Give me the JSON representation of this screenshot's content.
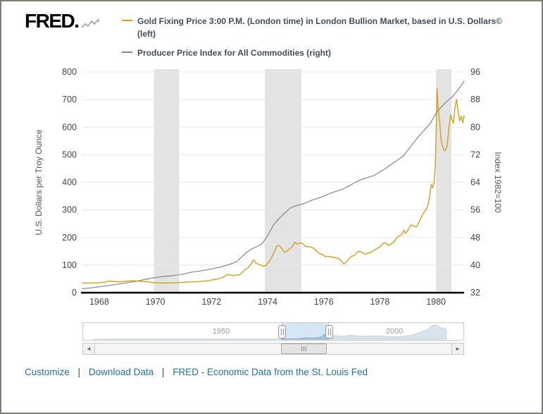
{
  "header": {
    "logo_text": "FRED."
  },
  "legend": [
    {
      "swatch_color": "#d4a017",
      "label": "Gold Fixing Price 3:00 P.M. (London time) in London Bullion Market, based in U.S. Dollars© (left)"
    },
    {
      "swatch_color": "#878787",
      "label": "Producer Price Index for All Commodities (right)"
    }
  ],
  "chart_data": {
    "type": "line",
    "title": "",
    "x_range": [
      1967.4,
      1981.0
    ],
    "x_ticks": [
      1968,
      1970,
      1972,
      1974,
      1976,
      1978,
      1980
    ],
    "left_axis": {
      "label": "U.S. Dollars per Troy Ounce",
      "min": 0,
      "max": 800,
      "ticks": [
        0,
        100,
        200,
        300,
        400,
        500,
        600,
        700,
        800
      ]
    },
    "right_axis": {
      "label": "Index 1982=100",
      "min": 32,
      "max": 96,
      "ticks": [
        32,
        40,
        48,
        56,
        64,
        72,
        80,
        88,
        96
      ]
    },
    "grid": true,
    "grid_color": "#e8e8e8",
    "recession_band_color": "#e3e3e3",
    "recession_bands": [
      [
        1969.95,
        1970.85
      ],
      [
        1973.9,
        1975.2
      ],
      [
        1980.0,
        1980.55
      ]
    ],
    "tick_text_color": "#444444",
    "axis_title_color": "#555555",
    "series": [
      {
        "name": "Producer Price Index for All Commodities",
        "axis": "right",
        "color": "#878787",
        "points": [
          [
            1967.4,
            33.2
          ],
          [
            1967.7,
            33.4
          ],
          [
            1968.0,
            33.7
          ],
          [
            1968.3,
            34.0
          ],
          [
            1968.6,
            34.4
          ],
          [
            1969.0,
            34.9
          ],
          [
            1969.3,
            35.3
          ],
          [
            1969.6,
            35.8
          ],
          [
            1970.0,
            36.4
          ],
          [
            1970.3,
            36.7
          ],
          [
            1970.6,
            36.9
          ],
          [
            1971.0,
            37.4
          ],
          [
            1971.3,
            38.0
          ],
          [
            1971.6,
            38.3
          ],
          [
            1972.0,
            38.9
          ],
          [
            1972.3,
            39.4
          ],
          [
            1972.6,
            40.1
          ],
          [
            1972.9,
            41.0
          ],
          [
            1973.0,
            41.8
          ],
          [
            1973.2,
            43.3
          ],
          [
            1973.4,
            44.6
          ],
          [
            1973.6,
            45.3
          ],
          [
            1973.8,
            46.2
          ],
          [
            1974.0,
            48.5
          ],
          [
            1974.2,
            51.5
          ],
          [
            1974.4,
            53.5
          ],
          [
            1974.6,
            55.0
          ],
          [
            1974.8,
            56.5
          ],
          [
            1975.0,
            57.2
          ],
          [
            1975.2,
            57.6
          ],
          [
            1975.4,
            58.2
          ],
          [
            1975.6,
            58.9
          ],
          [
            1975.8,
            59.4
          ],
          [
            1976.0,
            60.0
          ],
          [
            1976.2,
            60.7
          ],
          [
            1976.4,
            61.3
          ],
          [
            1976.6,
            61.8
          ],
          [
            1976.8,
            62.5
          ],
          [
            1977.0,
            63.4
          ],
          [
            1977.2,
            64.3
          ],
          [
            1977.4,
            65.0
          ],
          [
            1977.6,
            65.5
          ],
          [
            1977.8,
            66.0
          ],
          [
            1978.0,
            67.0
          ],
          [
            1978.2,
            68.0
          ],
          [
            1978.4,
            69.2
          ],
          [
            1978.6,
            70.3
          ],
          [
            1978.8,
            71.4
          ],
          [
            1979.0,
            73.3
          ],
          [
            1979.2,
            75.5
          ],
          [
            1979.4,
            77.5
          ],
          [
            1979.6,
            79.3
          ],
          [
            1979.8,
            81.2
          ],
          [
            1980.0,
            84.0
          ],
          [
            1980.2,
            86.0
          ],
          [
            1980.4,
            87.6
          ],
          [
            1980.6,
            89.0
          ],
          [
            1980.8,
            91.0
          ],
          [
            1981.0,
            93.3
          ]
        ]
      },
      {
        "name": "Gold Fixing Price 3:00 P.M. (London time) in London Bullion Market, based in U.S. Dollars",
        "axis": "left",
        "color": "#d4a017",
        "points": [
          [
            1967.4,
            35
          ],
          [
            1967.7,
            35
          ],
          [
            1968.0,
            36
          ],
          [
            1968.2,
            38
          ],
          [
            1968.35,
            42
          ],
          [
            1968.5,
            41
          ],
          [
            1968.7,
            39
          ],
          [
            1968.9,
            41
          ],
          [
            1969.1,
            43
          ],
          [
            1969.3,
            43
          ],
          [
            1969.5,
            41
          ],
          [
            1969.7,
            40
          ],
          [
            1969.9,
            37
          ],
          [
            1970.1,
            35
          ],
          [
            1970.3,
            35
          ],
          [
            1970.5,
            36
          ],
          [
            1970.7,
            36
          ],
          [
            1970.9,
            37
          ],
          [
            1971.1,
            38
          ],
          [
            1971.3,
            39
          ],
          [
            1971.5,
            40
          ],
          [
            1971.7,
            42
          ],
          [
            1971.9,
            43
          ],
          [
            1972.0,
            46
          ],
          [
            1972.2,
            49
          ],
          [
            1972.4,
            55
          ],
          [
            1972.5,
            62
          ],
          [
            1972.6,
            66
          ],
          [
            1972.75,
            62
          ],
          [
            1972.9,
            64
          ],
          [
            1973.0,
            65
          ],
          [
            1973.1,
            74
          ],
          [
            1973.2,
            84
          ],
          [
            1973.3,
            90
          ],
          [
            1973.4,
            102
          ],
          [
            1973.5,
            120
          ],
          [
            1973.6,
            106
          ],
          [
            1973.75,
            100
          ],
          [
            1973.85,
            95
          ],
          [
            1973.95,
            100
          ],
          [
            1974.05,
            112
          ],
          [
            1974.15,
            130
          ],
          [
            1974.25,
            150
          ],
          [
            1974.32,
            168
          ],
          [
            1974.4,
            172
          ],
          [
            1974.5,
            160
          ],
          [
            1974.6,
            146
          ],
          [
            1974.7,
            152
          ],
          [
            1974.8,
            160
          ],
          [
            1974.9,
            170
          ],
          [
            1974.97,
            183
          ],
          [
            1975.05,
            176
          ],
          [
            1975.15,
            180
          ],
          [
            1975.25,
            178
          ],
          [
            1975.35,
            167
          ],
          [
            1975.45,
            167
          ],
          [
            1975.55,
            165
          ],
          [
            1975.65,
            160
          ],
          [
            1975.75,
            150
          ],
          [
            1975.85,
            142
          ],
          [
            1975.95,
            139
          ],
          [
            1976.05,
            131
          ],
          [
            1976.15,
            132
          ],
          [
            1976.25,
            130
          ],
          [
            1976.35,
            128
          ],
          [
            1976.45,
            126
          ],
          [
            1976.55,
            123
          ],
          [
            1976.65,
            112
          ],
          [
            1976.72,
            104
          ],
          [
            1976.8,
            110
          ],
          [
            1976.9,
            123
          ],
          [
            1977.0,
            132
          ],
          [
            1977.1,
            136
          ],
          [
            1977.2,
            148
          ],
          [
            1977.3,
            150
          ],
          [
            1977.4,
            143
          ],
          [
            1977.5,
            140
          ],
          [
            1977.6,
            144
          ],
          [
            1977.7,
            147
          ],
          [
            1977.8,
            155
          ],
          [
            1977.9,
            160
          ],
          [
            1978.0,
            166
          ],
          [
            1978.1,
            178
          ],
          [
            1978.2,
            181
          ],
          [
            1978.3,
            171
          ],
          [
            1978.4,
            176
          ],
          [
            1978.5,
            184
          ],
          [
            1978.6,
            200
          ],
          [
            1978.7,
            206
          ],
          [
            1978.8,
            212
          ],
          [
            1978.85,
            227
          ],
          [
            1978.92,
            215
          ],
          [
            1979.0,
            227
          ],
          [
            1979.1,
            245
          ],
          [
            1979.2,
            242
          ],
          [
            1979.3,
            239
          ],
          [
            1979.4,
            257
          ],
          [
            1979.5,
            279
          ],
          [
            1979.58,
            294
          ],
          [
            1979.65,
            301
          ],
          [
            1979.72,
            320
          ],
          [
            1979.78,
            355
          ],
          [
            1979.83,
            392
          ],
          [
            1979.88,
            380
          ],
          [
            1979.93,
            400
          ],
          [
            1979.97,
            455
          ],
          [
            1980.0,
            560
          ],
          [
            1980.04,
            740
          ],
          [
            1980.08,
            665
          ],
          [
            1980.13,
            620
          ],
          [
            1980.18,
            555
          ],
          [
            1980.23,
            530
          ],
          [
            1980.28,
            516
          ],
          [
            1980.33,
            514
          ],
          [
            1980.4,
            535
          ],
          [
            1980.46,
            600
          ],
          [
            1980.52,
            644
          ],
          [
            1980.57,
            627
          ],
          [
            1980.62,
            614
          ],
          [
            1980.68,
            674
          ],
          [
            1980.73,
            700
          ],
          [
            1980.78,
            661
          ],
          [
            1980.84,
            623
          ],
          [
            1980.9,
            640
          ],
          [
            1980.95,
            615
          ],
          [
            1981.0,
            641
          ]
        ]
      }
    ]
  },
  "slider": {
    "x_range": [
      1910,
      2020
    ],
    "window": [
      1967.4,
      1981.0
    ],
    "year_labels": [
      {
        "text": "1950",
        "year": 1950
      },
      {
        "text": "2000",
        "year": 2000
      }
    ],
    "area_color": "#a9c0d9",
    "area_stroke": "#7e99ba",
    "series_points": [
      [
        1913,
        20
      ],
      [
        1925,
        21
      ],
      [
        1931,
        22
      ],
      [
        1934,
        35
      ],
      [
        1945,
        35
      ],
      [
        1950,
        35
      ],
      [
        1955,
        35
      ],
      [
        1960,
        35
      ],
      [
        1965,
        35
      ],
      [
        1968,
        39
      ],
      [
        1970,
        36
      ],
      [
        1972,
        58
      ],
      [
        1973,
        97
      ],
      [
        1974,
        159
      ],
      [
        1975,
        161
      ],
      [
        1976,
        125
      ],
      [
        1977,
        148
      ],
      [
        1978,
        193
      ],
      [
        1979,
        306
      ],
      [
        1980,
        613
      ],
      [
        1981,
        460
      ],
      [
        1982,
        376
      ],
      [
        1983,
        424
      ],
      [
        1984,
        361
      ],
      [
        1985,
        317
      ],
      [
        1986,
        368
      ],
      [
        1987,
        447
      ],
      [
        1988,
        437
      ],
      [
        1989,
        381
      ],
      [
        1990,
        383
      ],
      [
        1991,
        362
      ],
      [
        1992,
        344
      ],
      [
        1993,
        360
      ],
      [
        1994,
        384
      ],
      [
        1995,
        384
      ],
      [
        1996,
        388
      ],
      [
        1997,
        331
      ],
      [
        1998,
        294
      ],
      [
        1999,
        279
      ],
      [
        2000,
        279
      ],
      [
        2001,
        271
      ],
      [
        2002,
        310
      ],
      [
        2003,
        363
      ],
      [
        2004,
        410
      ],
      [
        2005,
        445
      ],
      [
        2006,
        603
      ],
      [
        2007,
        695
      ],
      [
        2008,
        872
      ],
      [
        2009,
        972
      ],
      [
        2010,
        1225
      ],
      [
        2011,
        1570
      ],
      [
        2012,
        1669
      ],
      [
        2013,
        1411
      ],
      [
        2014,
        1266
      ],
      [
        2015,
        1160
      ]
    ]
  },
  "scrollbar": {
    "left_arrow": "◄",
    "right_arrow": "►"
  },
  "footer": {
    "separator": "|",
    "links": [
      {
        "label": "Customize"
      },
      {
        "label": "Download Data"
      },
      {
        "label": "FRED - Economic Data from the St. Louis Fed"
      }
    ]
  }
}
